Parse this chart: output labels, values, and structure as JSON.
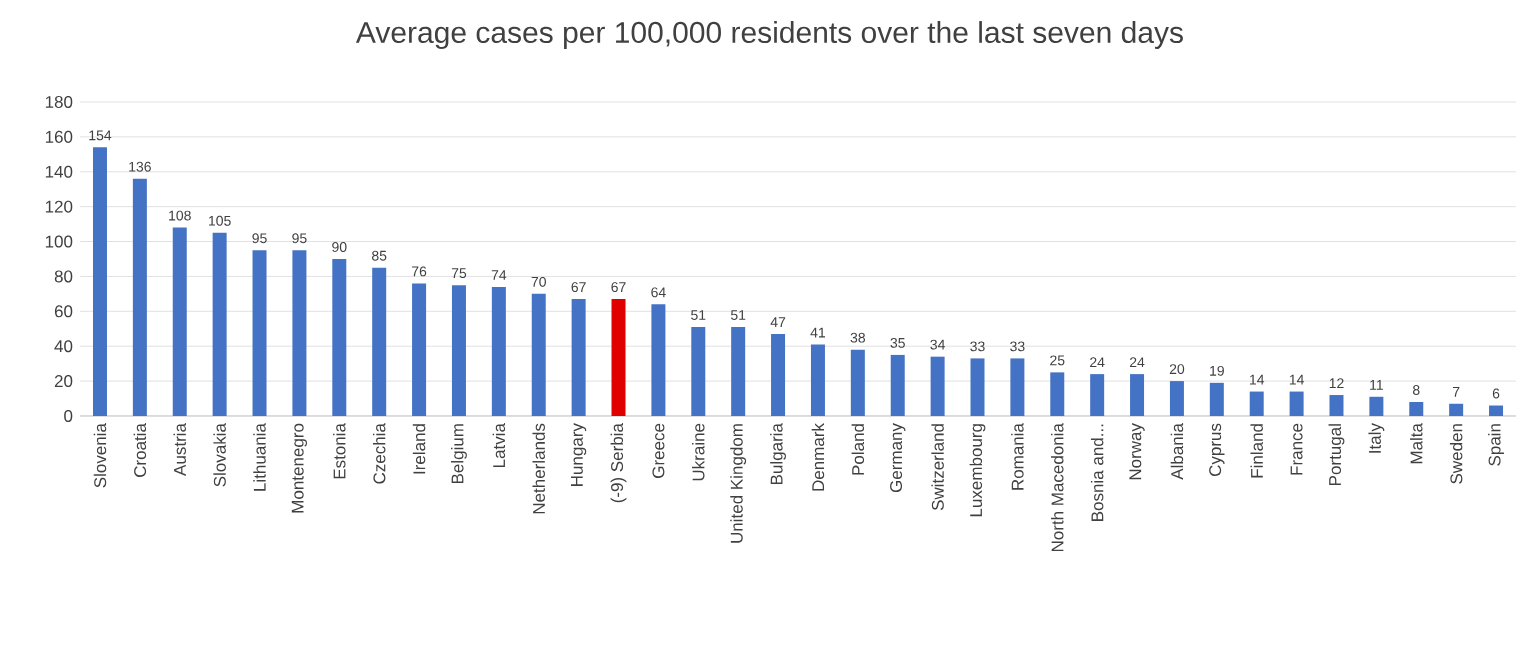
{
  "chart_data": {
    "type": "bar",
    "title": "Average cases per 100,000 residents over the last seven days",
    "categories": [
      "Slovenia",
      "Croatia",
      "Austria",
      "Slovakia",
      "Lithuania",
      "Montenegro",
      "Estonia",
      "Czechia",
      "Ireland",
      "Belgium",
      "Latvia",
      "Netherlands",
      "Hungary",
      "(-9) Serbia",
      "Greece",
      "Ukraine",
      "United Kingdom",
      "Bulgaria",
      "Denmark",
      "Poland",
      "Germany",
      "Switzerland",
      "Luxembourg",
      "Romania",
      "North Macedonia",
      "Bosnia and...",
      "Norway",
      "Albania",
      "Cyprus",
      "Finland",
      "France",
      "Portugal",
      "Italy",
      "Malta",
      "Sweden",
      "Spain"
    ],
    "values": [
      154,
      136,
      108,
      105,
      95,
      95,
      90,
      85,
      76,
      75,
      74,
      70,
      67,
      67,
      64,
      51,
      51,
      47,
      41,
      38,
      35,
      34,
      33,
      33,
      25,
      24,
      24,
      20,
      19,
      14,
      14,
      12,
      11,
      8,
      7,
      6
    ],
    "colors": [
      "#4472c4",
      "#4472c4",
      "#4472c4",
      "#4472c4",
      "#4472c4",
      "#4472c4",
      "#4472c4",
      "#4472c4",
      "#4472c4",
      "#4472c4",
      "#4472c4",
      "#4472c4",
      "#4472c4",
      "#e00000",
      "#4472c4",
      "#4472c4",
      "#4472c4",
      "#4472c4",
      "#4472c4",
      "#4472c4",
      "#4472c4",
      "#4472c4",
      "#4472c4",
      "#4472c4",
      "#4472c4",
      "#4472c4",
      "#4472c4",
      "#4472c4",
      "#4472c4",
      "#4472c4",
      "#4472c4",
      "#4472c4",
      "#4472c4",
      "#4472c4",
      "#4472c4",
      "#4472c4"
    ],
    "ylim": [
      0,
      180
    ],
    "yticks": [
      0,
      20,
      40,
      60,
      80,
      100,
      120,
      140,
      160,
      180
    ],
    "grid": "y",
    "data_labels": true
  }
}
